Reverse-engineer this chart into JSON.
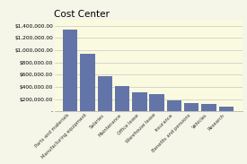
{
  "title": "Cost Center",
  "categories": [
    "Parts and materials",
    "Manufacturing equipment",
    "Salaries",
    "Maintenance",
    "Office lease",
    "Warehouse lease",
    "Insurance",
    "Benefits and pensions",
    "Vehicles",
    "Research"
  ],
  "values": [
    1340000,
    940000,
    580000,
    420000,
    310000,
    280000,
    175000,
    140000,
    130000,
    80000
  ],
  "bar_color": "#6375a8",
  "background_color": "#f5f5e8",
  "plot_bg_color": "#fafae0",
  "ylim": [
    0,
    1500000
  ],
  "yticks": [
    0,
    200000,
    400000,
    600000,
    800000,
    1000000,
    1200000,
    1400000
  ],
  "title_fontsize": 7.5,
  "tick_fontsize": 4.2,
  "xtick_fontsize": 3.8
}
